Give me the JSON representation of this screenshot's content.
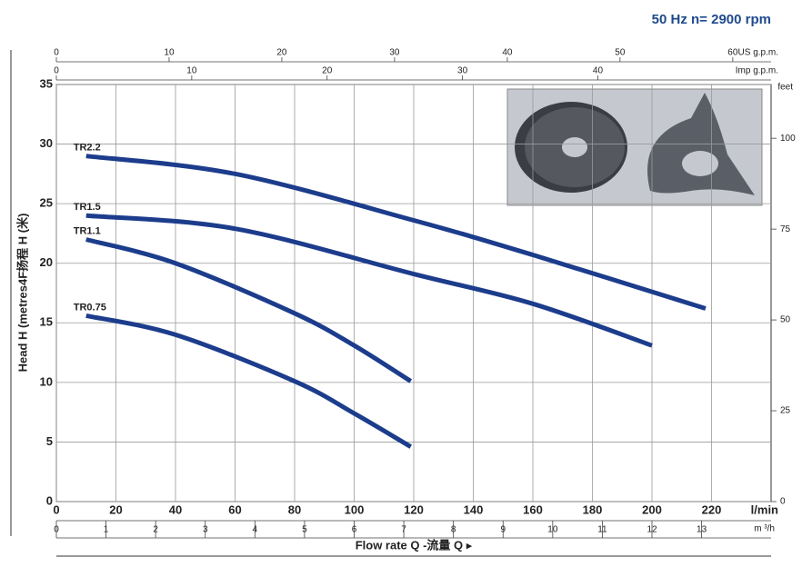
{
  "chart_data": {
    "type": "line",
    "title": "50 Hz   n= 2900 rpm",
    "xlabel": "Flow rate Q -流量 Q ▸",
    "xunit": "l/min",
    "ylabel": "Head H  (metres4F扬程 H (米)",
    "xlim": [
      0,
      240
    ],
    "xticks": [
      0,
      20,
      40,
      60,
      80,
      100,
      120,
      140,
      160,
      180,
      200,
      220
    ],
    "ylim": [
      0,
      35
    ],
    "yticks": [
      0,
      5,
      10,
      15,
      20,
      25,
      30,
      35
    ],
    "x2label": "US g.p.m.",
    "x2lim": [
      0,
      63.4
    ],
    "x2ticks": [
      0,
      10,
      20,
      30,
      40,
      50,
      60
    ],
    "x3label": "Imp g.p.m.",
    "x3lim": [
      0,
      52.8
    ],
    "x3ticks": [
      0,
      10,
      20,
      30,
      40
    ],
    "x4label": "m ³/h",
    "x4lim": [
      0,
      14.4
    ],
    "x4ticks": [
      0,
      1,
      2,
      3,
      4,
      5,
      6,
      7,
      8,
      9,
      10,
      11,
      12,
      13
    ],
    "y2label": "feet",
    "y2lim": [
      0,
      114.8
    ],
    "y2ticks": [
      0,
      25,
      50,
      75,
      100
    ],
    "grid": true,
    "series": [
      {
        "name": "TR2.2",
        "color": "#1c3c8c",
        "x": [
          10,
          60,
          120,
          160,
          218
        ],
        "values": [
          29,
          27.5,
          23.6,
          20.7,
          16.2
        ]
      },
      {
        "name": "TR1.5",
        "color": "#1c3c8c",
        "x": [
          10,
          60,
          120,
          160,
          200
        ],
        "values": [
          24,
          22.9,
          19.1,
          16.6,
          13.1
        ]
      },
      {
        "name": "TR1.1",
        "color": "#1c3c8c",
        "x": [
          10,
          40,
          80,
          100,
          119
        ],
        "values": [
          22,
          20,
          15.8,
          13.1,
          10.1
        ]
      },
      {
        "name": "TR0.75",
        "color": "#1c3c8c",
        "x": [
          10,
          40,
          80,
          100,
          119
        ],
        "values": [
          15.6,
          14,
          10.1,
          7.4,
          4.6
        ]
      }
    ]
  }
}
